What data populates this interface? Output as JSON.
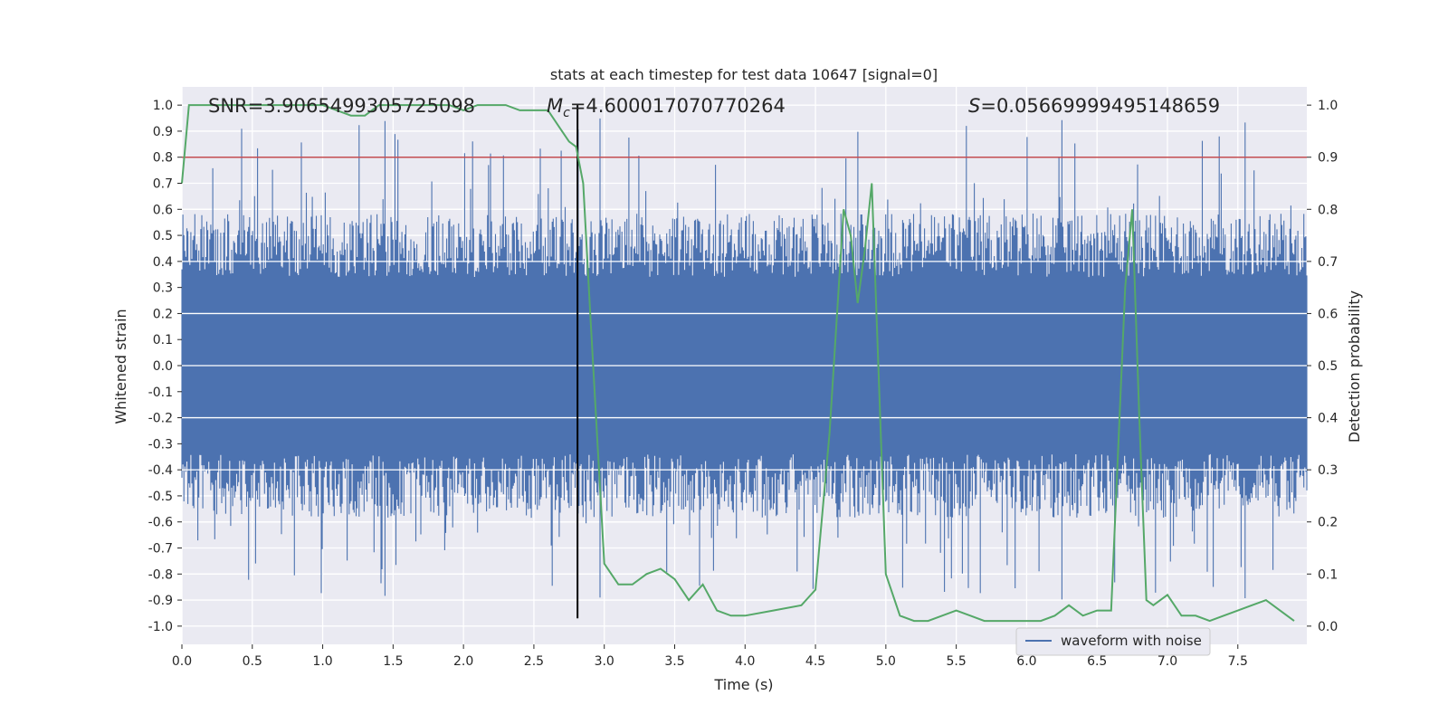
{
  "chart_data": {
    "type": "line",
    "title": "stats at each timestep for test data 10647 [signal=0]",
    "xlabel": "Time (s)",
    "ylabel_left": "Whitened strain",
    "ylabel_right": "Detection probability",
    "xlim": [
      0.0,
      7.99
    ],
    "ylim_left": [
      -1.07,
      1.07
    ],
    "ylim_right": [
      -0.035,
      1.035
    ],
    "x_ticks": [
      "0.0",
      "0.5",
      "1.0",
      "1.5",
      "2.0",
      "2.5",
      "3.0",
      "3.5",
      "4.0",
      "4.5",
      "5.0",
      "5.5",
      "6.0",
      "6.5",
      "7.0",
      "7.5"
    ],
    "y_ticks_left": [
      "1.0",
      "0.9",
      "0.8",
      "0.7",
      "0.6",
      "0.5",
      "0.4",
      "0.3",
      "0.2",
      "0.1",
      "0.0",
      "-0.1",
      "-0.2",
      "-0.3",
      "-0.4",
      "-0.5",
      "-0.6",
      "-0.7",
      "-0.8",
      "-0.9",
      "-1.0"
    ],
    "y_ticks_right": [
      "1.0",
      "0.9",
      "0.8",
      "0.7",
      "0.6",
      "0.5",
      "0.4",
      "0.3",
      "0.2",
      "0.1",
      "0.0"
    ],
    "annotations": {
      "snr": "SNR=3.9065499305725098",
      "mc_symbol": "M",
      "mc_sub": "c",
      "mc_value": "=4.600017070770264",
      "s_symbol": "S",
      "s_value": "=0.05669999495148659"
    },
    "threshold_right": 0.9,
    "vertical_line_x": 2.81,
    "waveform": {
      "name": "waveform with noise",
      "color": "#4c72b0",
      "note": "dense noise ~ between -0.4 and 0.4 with spikes to +/-1.0",
      "band_upper": 0.4,
      "band_lower": -0.4
    },
    "detection_probability": {
      "color": "#55a868",
      "x": [
        0.0,
        0.05,
        0.12,
        0.2,
        0.3,
        0.5,
        0.7,
        0.9,
        1.0,
        1.1,
        1.2,
        1.25,
        1.3,
        1.35,
        1.4,
        1.5,
        1.6,
        1.7,
        1.8,
        1.9,
        2.0,
        2.1,
        2.2,
        2.3,
        2.4,
        2.5,
        2.6,
        2.7,
        2.75,
        2.8,
        2.85,
        2.9,
        3.0,
        3.1,
        3.2,
        3.3,
        3.4,
        3.5,
        3.6,
        3.7,
        3.8,
        3.9,
        4.0,
        4.2,
        4.4,
        4.5,
        4.6,
        4.7,
        4.75,
        4.8,
        4.85,
        4.9,
        5.0,
        5.1,
        5.2,
        5.3,
        5.4,
        5.5,
        5.6,
        5.7,
        5.8,
        5.9,
        6.0,
        6.1,
        6.2,
        6.3,
        6.4,
        6.5,
        6.6,
        6.7,
        6.75,
        6.8,
        6.85,
        6.9,
        7.0,
        7.1,
        7.2,
        7.3,
        7.4,
        7.5,
        7.6,
        7.7,
        7.8,
        7.9
      ],
      "y": [
        0.85,
        1.0,
        1.0,
        1.0,
        1.0,
        1.0,
        1.0,
        1.0,
        1.0,
        0.99,
        0.98,
        0.98,
        0.98,
        0.99,
        1.0,
        1.0,
        1.0,
        1.0,
        1.0,
        1.0,
        0.99,
        1.0,
        1.0,
        1.0,
        0.99,
        0.99,
        0.99,
        0.95,
        0.93,
        0.92,
        0.85,
        0.6,
        0.12,
        0.08,
        0.08,
        0.1,
        0.11,
        0.09,
        0.05,
        0.08,
        0.03,
        0.02,
        0.02,
        0.03,
        0.04,
        0.07,
        0.37,
        0.8,
        0.75,
        0.62,
        0.72,
        0.85,
        0.1,
        0.02,
        0.01,
        0.01,
        0.02,
        0.03,
        0.02,
        0.01,
        0.01,
        0.01,
        0.01,
        0.01,
        0.02,
        0.04,
        0.02,
        0.03,
        0.03,
        0.65,
        0.8,
        0.4,
        0.05,
        0.04,
        0.06,
        0.02,
        0.02,
        0.01,
        0.02,
        0.03,
        0.04,
        0.05,
        0.03,
        0.01
      ]
    },
    "legend": {
      "label": "waveform with noise",
      "placement": "bottom-right"
    }
  }
}
